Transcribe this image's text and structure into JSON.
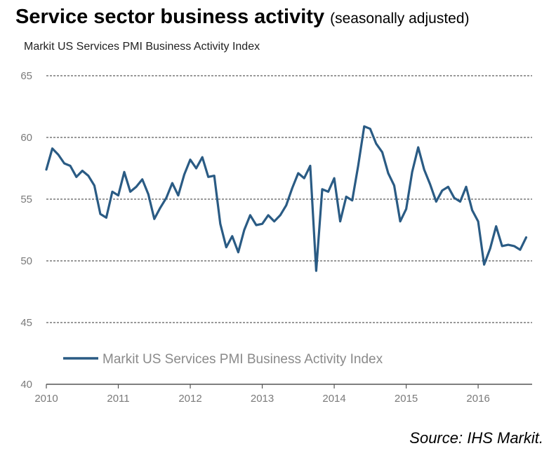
{
  "header": {
    "title": "Service sector business activity",
    "subtitle": "(seasonally adjusted)"
  },
  "source": "Source: IHS Markit.",
  "chart_data": {
    "type": "line",
    "title": "Markit US Services PMI Business Activity Index",
    "xlabel": "",
    "ylabel": "",
    "ylim": [
      40,
      65
    ],
    "yticks": [
      40,
      45,
      50,
      55,
      60,
      65
    ],
    "xticks": [
      2010,
      2011,
      2012,
      2013,
      2014,
      2015,
      2016
    ],
    "xlim": [
      2010,
      2016.75
    ],
    "grid": "horizontal dashed",
    "legend": "bottom-left inside",
    "line_color": "#2a5b84",
    "series": [
      {
        "name": "Markit US Services PMI Business Activity Index",
        "x": [
          2010.0,
          2010.083,
          2010.167,
          2010.25,
          2010.333,
          2010.417,
          2010.5,
          2010.583,
          2010.667,
          2010.75,
          2010.833,
          2010.917,
          2011.0,
          2011.083,
          2011.167,
          2011.25,
          2011.333,
          2011.417,
          2011.5,
          2011.583,
          2011.667,
          2011.75,
          2011.833,
          2011.917,
          2012.0,
          2012.083,
          2012.167,
          2012.25,
          2012.333,
          2012.417,
          2012.5,
          2012.583,
          2012.667,
          2012.75,
          2012.833,
          2012.917,
          2013.0,
          2013.083,
          2013.167,
          2013.25,
          2013.333,
          2013.417,
          2013.5,
          2013.583,
          2013.667,
          2013.75,
          2013.833,
          2013.917,
          2014.0,
          2014.083,
          2014.167,
          2014.25,
          2014.333,
          2014.417,
          2014.5,
          2014.583,
          2014.667,
          2014.75,
          2014.833,
          2014.917,
          2015.0,
          2015.083,
          2015.167,
          2015.25,
          2015.333,
          2015.417,
          2015.5,
          2015.583,
          2015.667,
          2015.75,
          2015.833,
          2015.917,
          2016.0,
          2016.083,
          2016.167,
          2016.25,
          2016.333,
          2016.417,
          2016.5,
          2016.583,
          2016.667
        ],
        "values": [
          57.4,
          59.1,
          58.6,
          57.9,
          57.7,
          56.8,
          57.3,
          56.9,
          56.1,
          53.8,
          53.5,
          55.6,
          55.3,
          57.2,
          55.6,
          56.0,
          56.6,
          55.4,
          53.4,
          54.3,
          55.1,
          56.3,
          55.3,
          57.0,
          58.2,
          57.5,
          58.4,
          56.8,
          56.9,
          53.0,
          51.1,
          52.0,
          50.7,
          52.5,
          53.7,
          52.9,
          53.0,
          53.7,
          53.2,
          53.7,
          54.5,
          55.9,
          57.1,
          56.7,
          57.7,
          49.2,
          55.8,
          55.6,
          56.7,
          53.2,
          55.2,
          54.9,
          57.7,
          60.9,
          60.7,
          59.5,
          58.8,
          57.1,
          56.1,
          53.2,
          54.2,
          57.2,
          59.2,
          57.4,
          56.2,
          54.8,
          55.7,
          56.0,
          55.1,
          54.8,
          56.0,
          54.1,
          53.2,
          49.7,
          51.0,
          52.8,
          51.2,
          51.3,
          51.2,
          50.9,
          51.9
        ]
      }
    ]
  }
}
